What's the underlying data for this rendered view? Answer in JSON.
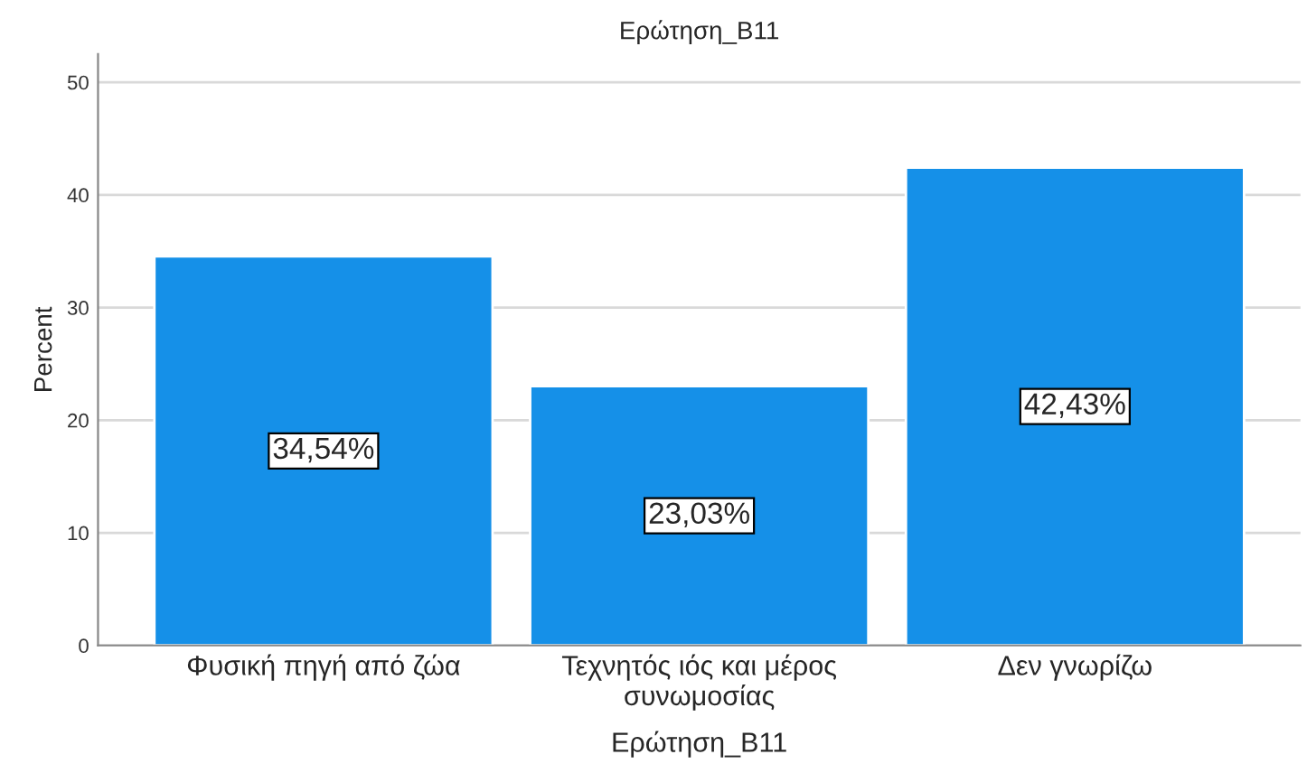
{
  "chart_data": {
    "type": "bar",
    "title": "Ερώτηση_B11",
    "xlabel": "Ερώτηση_B11",
    "ylabel": "Percent",
    "categories": [
      "Φυσική πηγή από ζώα",
      "Τεχνητός ιός και μέρος\nσυνωμοσίας",
      "Δεν γνωρίζω"
    ],
    "values": [
      34.54,
      23.03,
      42.43
    ],
    "color": "#1590e8",
    "value_labels": [
      "34,54%",
      "23,03%",
      "42,43%"
    ],
    "ylim": [
      0,
      52.5
    ],
    "yticks": [
      0,
      10,
      20,
      30,
      40,
      50
    ],
    "grid": "y"
  }
}
